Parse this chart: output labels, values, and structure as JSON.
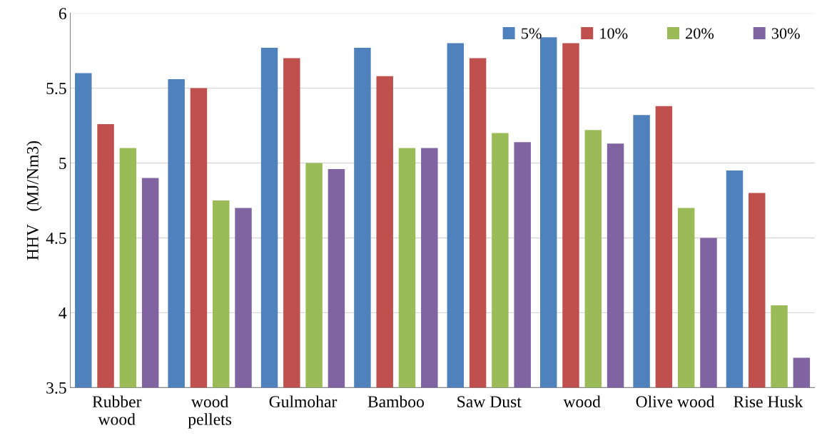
{
  "chart_data": {
    "type": "bar",
    "ylabel": "HHV   (MJ/Nm3)",
    "categories": [
      "Rubber\nwood",
      "wood\npellets",
      "Gulmohar",
      "Bamboo",
      "Saw Dust",
      "wood",
      "Olive wood",
      "Rise Husk"
    ],
    "series": [
      {
        "name": "5%",
        "color": "#4f81bd",
        "values": [
          5.6,
          5.56,
          5.77,
          5.77,
          5.8,
          5.84,
          5.32,
          4.95
        ]
      },
      {
        "name": "10%",
        "color": "#c0504d",
        "values": [
          5.26,
          5.5,
          5.7,
          5.58,
          5.7,
          5.8,
          5.38,
          4.8
        ]
      },
      {
        "name": "20%",
        "color": "#9bbb59",
        "values": [
          5.1,
          4.75,
          5.0,
          5.1,
          5.2,
          5.22,
          4.7,
          4.05
        ]
      },
      {
        "name": "30%",
        "color": "#8064a2",
        "values": [
          4.9,
          4.7,
          4.96,
          5.1,
          5.14,
          5.13,
          4.5,
          3.7
        ]
      }
    ],
    "ylim": [
      3.5,
      6
    ],
    "yticks": [
      3.5,
      4,
      4.5,
      5,
      5.5,
      6
    ],
    "grid": "y",
    "legend": "top right"
  }
}
